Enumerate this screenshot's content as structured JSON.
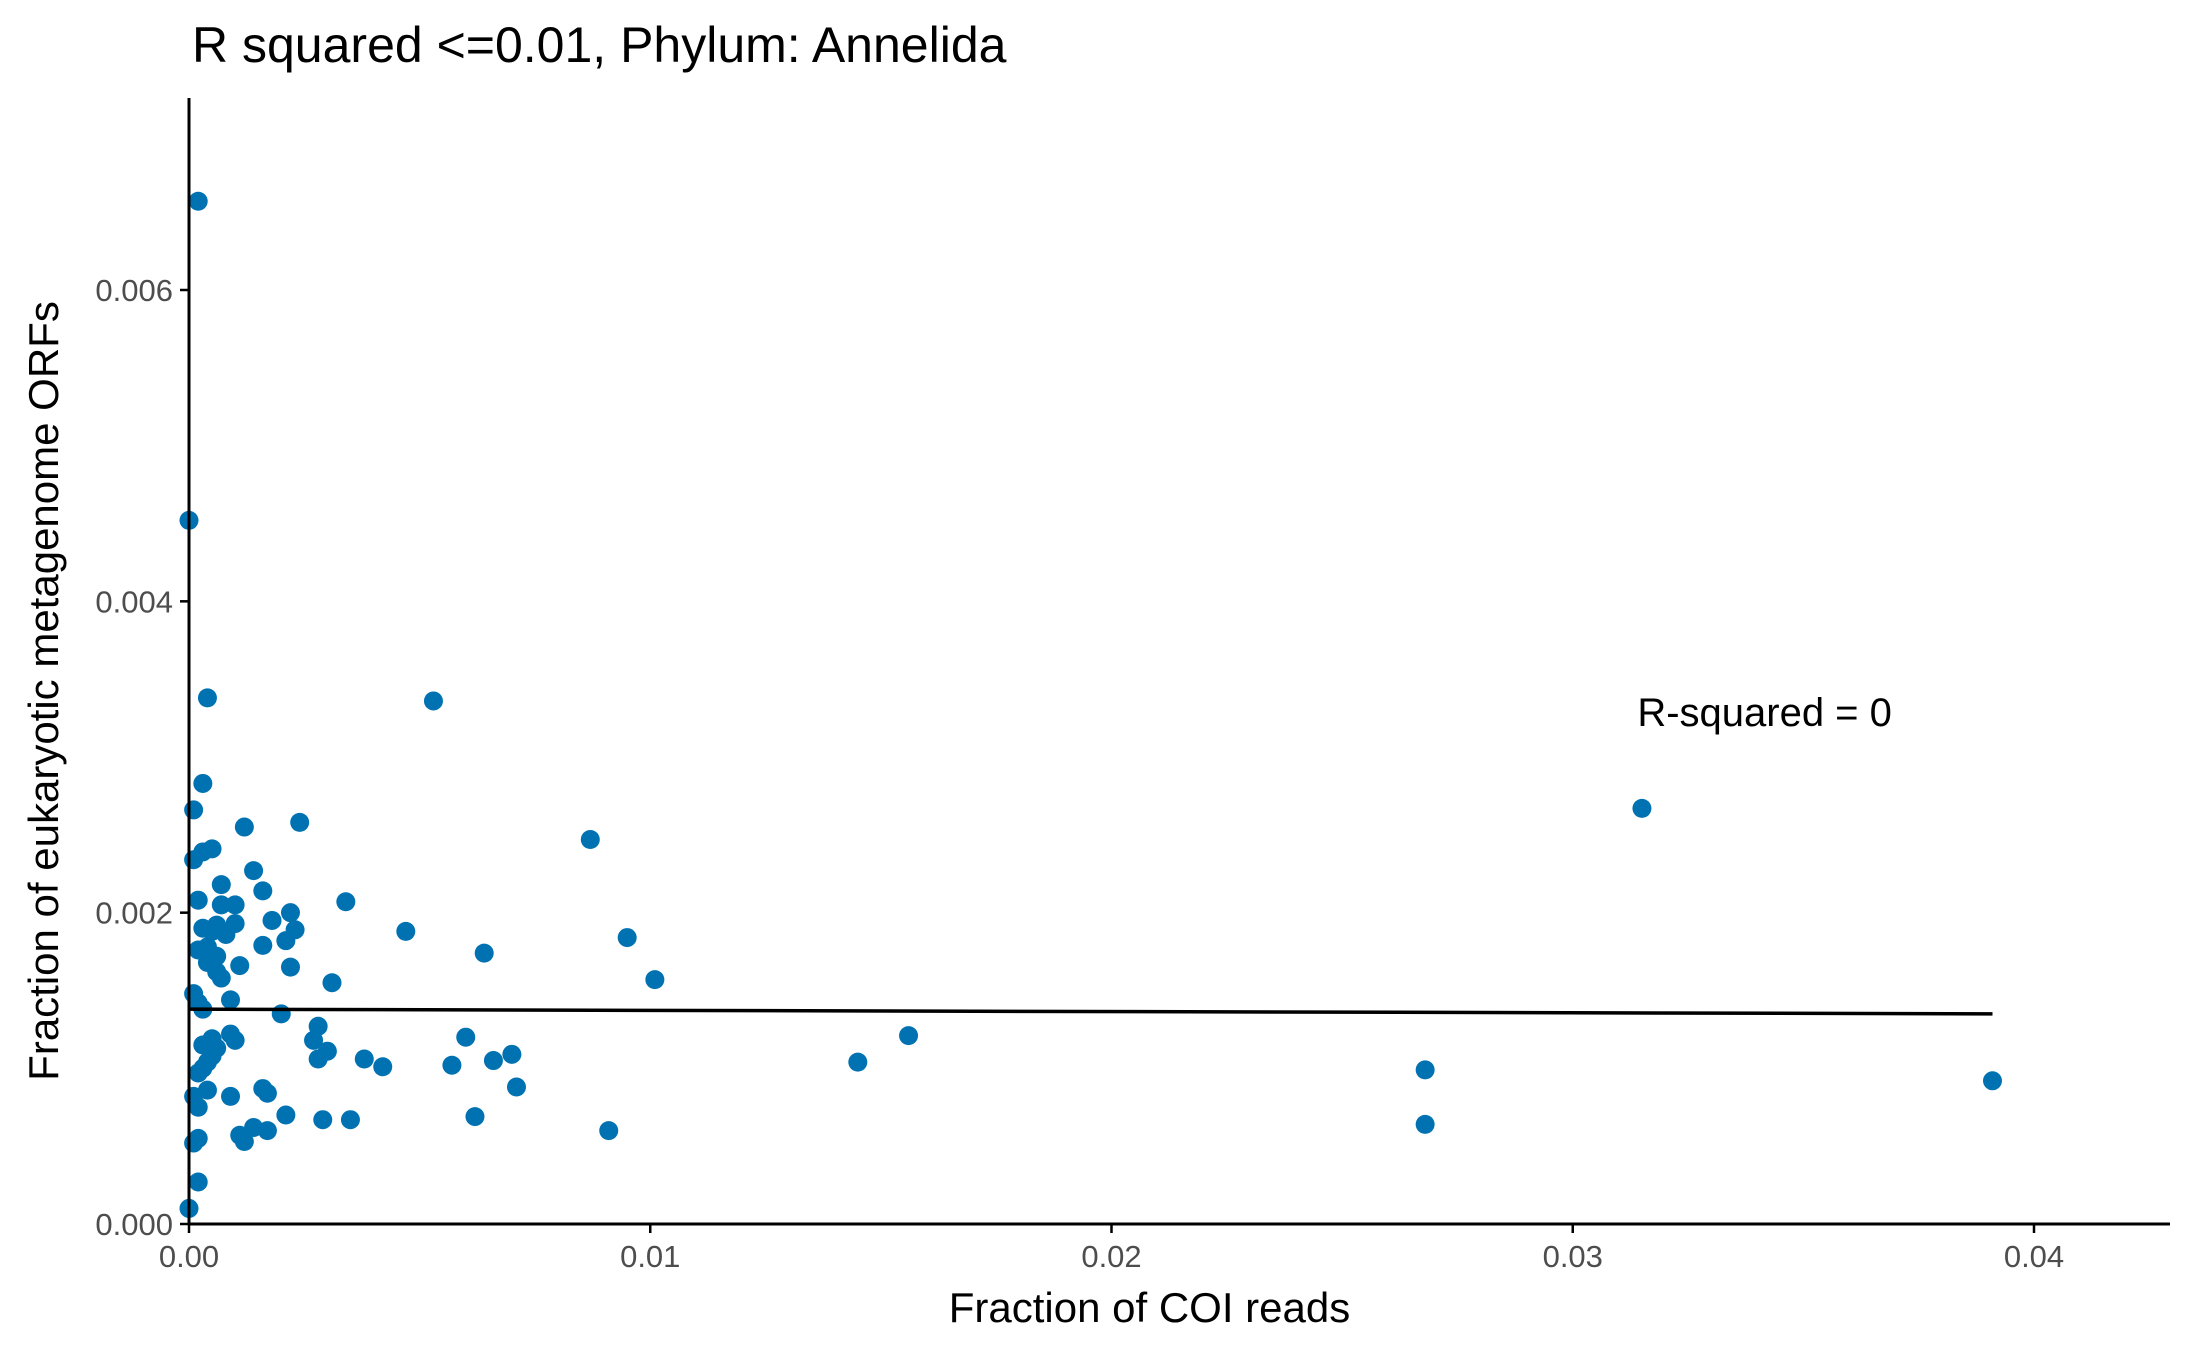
{
  "chart_data": {
    "type": "scatter",
    "title": "R squared <=0.01, Phylum:  Annelida",
    "xlabel": "Fraction of COI reads",
    "ylabel": "Fraction of eukaryotic metagenome ORFs",
    "xlim": [
      0,
      0.043
    ],
    "ylim": [
      0,
      0.0072
    ],
    "x_ticks": [
      0.0,
      0.01,
      0.02,
      0.03,
      0.04
    ],
    "x_tick_labels": [
      "0.00",
      "0.01",
      "0.02",
      "0.03",
      "0.04"
    ],
    "y_ticks": [
      0.0,
      0.002,
      0.004,
      0.006
    ],
    "y_tick_labels": [
      "0.000",
      "0.002",
      "0.004",
      "0.006"
    ],
    "grid": false,
    "point_color": "#0072b2",
    "annotation": {
      "text": "R-squared =  0",
      "x": 0.0314,
      "y": 0.0032
    },
    "fit_line": {
      "x": [
        0.0,
        0.0391
      ],
      "y": [
        0.00138,
        0.00135
      ]
    },
    "points": [
      [
        0.0002,
        0.00657
      ],
      [
        0.0,
        0.00452
      ],
      [
        0.0004,
        0.00338
      ],
      [
        0.0053,
        0.00336
      ],
      [
        0.0003,
        0.00283
      ],
      [
        0.0001,
        0.00266
      ],
      [
        0.0012,
        0.00255
      ],
      [
        0.0024,
        0.00258
      ],
      [
        0.0087,
        0.00247
      ],
      [
        0.0315,
        0.00267
      ],
      [
        0.0005,
        0.00241
      ],
      [
        0.0003,
        0.00239
      ],
      [
        0.0001,
        0.00234
      ],
      [
        0.0014,
        0.00227
      ],
      [
        0.0007,
        0.00218
      ],
      [
        0.0016,
        0.00214
      ],
      [
        0.0034,
        0.00207
      ],
      [
        0.0007,
        0.00205
      ],
      [
        0.001,
        0.00205
      ],
      [
        0.0002,
        0.00208
      ],
      [
        0.0022,
        0.002
      ],
      [
        0.0018,
        0.00195
      ],
      [
        0.001,
        0.00193
      ],
      [
        0.0006,
        0.00192
      ],
      [
        0.0023,
        0.00189
      ],
      [
        0.0047,
        0.00188
      ],
      [
        0.0003,
        0.0019
      ],
      [
        0.0005,
        0.00188
      ],
      [
        0.0008,
        0.00186
      ],
      [
        0.0095,
        0.00184
      ],
      [
        0.0021,
        0.00182
      ],
      [
        0.0016,
        0.00179
      ],
      [
        0.0004,
        0.00178
      ],
      [
        0.0002,
        0.00176
      ],
      [
        0.0064,
        0.00174
      ],
      [
        0.0006,
        0.00172
      ],
      [
        0.0004,
        0.00168
      ],
      [
        0.0011,
        0.00166
      ],
      [
        0.0022,
        0.00165
      ],
      [
        0.0006,
        0.00162
      ],
      [
        0.0007,
        0.00158
      ],
      [
        0.0101,
        0.00157
      ],
      [
        0.0031,
        0.00155
      ],
      [
        0.0001,
        0.00148
      ],
      [
        0.0009,
        0.00144
      ],
      [
        0.0002,
        0.00142
      ],
      [
        0.002,
        0.00135
      ],
      [
        0.0003,
        0.00138
      ],
      [
        0.0028,
        0.00127
      ],
      [
        0.0009,
        0.00122
      ],
      [
        0.0156,
        0.00121
      ],
      [
        0.006,
        0.0012
      ],
      [
        0.0005,
        0.00119
      ],
      [
        0.001,
        0.00118
      ],
      [
        0.0027,
        0.00118
      ],
      [
        0.0003,
        0.00115
      ],
      [
        0.0006,
        0.00113
      ],
      [
        0.003,
        0.00111
      ],
      [
        0.0005,
        0.00108
      ],
      [
        0.007,
        0.00109
      ],
      [
        0.0028,
        0.00106
      ],
      [
        0.0038,
        0.00106
      ],
      [
        0.0066,
        0.00105
      ],
      [
        0.0145,
        0.00104
      ],
      [
        0.0004,
        0.00104
      ],
      [
        0.0057,
        0.00102
      ],
      [
        0.0042,
        0.00101
      ],
      [
        0.0003,
        0.001
      ],
      [
        0.0268,
        0.00099
      ],
      [
        0.0002,
        0.00097
      ],
      [
        0.0391,
        0.00092
      ],
      [
        0.0071,
        0.00088
      ],
      [
        0.0016,
        0.00087
      ],
      [
        0.0004,
        0.00086
      ],
      [
        0.0017,
        0.00084
      ],
      [
        0.0009,
        0.00082
      ],
      [
        0.0001,
        0.00082
      ],
      [
        0.0002,
        0.00075
      ],
      [
        0.0021,
        0.0007
      ],
      [
        0.0062,
        0.00069
      ],
      [
        0.0029,
        0.00067
      ],
      [
        0.0035,
        0.00067
      ],
      [
        0.0268,
        0.00064
      ],
      [
        0.0014,
        0.00062
      ],
      [
        0.0091,
        0.0006
      ],
      [
        0.0017,
        0.0006
      ],
      [
        0.0011,
        0.00057
      ],
      [
        0.0002,
        0.00055
      ],
      [
        0.0001,
        0.00052
      ],
      [
        0.0012,
        0.00053
      ],
      [
        0.0002,
        0.00027
      ],
      [
        0.0,
        0.0001
      ]
    ]
  }
}
